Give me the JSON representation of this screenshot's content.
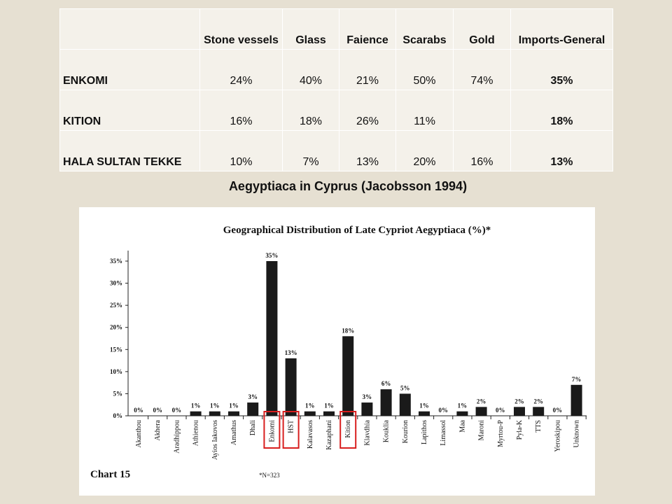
{
  "table": {
    "header": [
      null,
      "Stone vessels",
      "Glass",
      "Faience",
      "Scarabs",
      "Gold",
      "Imports-General"
    ],
    "rows": [
      [
        "ENKOMI",
        "24%",
        "40%",
        "21%",
        "50%",
        "74%",
        "35%"
      ],
      [
        "KITION",
        "16%",
        "18%",
        "26%",
        "11%",
        null,
        "18%"
      ],
      [
        "HALA SULTAN TEKKE",
        "10%",
        "7%",
        "13%",
        "20%",
        "16%",
        "13%"
      ]
    ]
  },
  "caption": "Aegyptiaca in Cyprus (Jacobsson 1994)",
  "chart_data": {
    "type": "bar",
    "title": "Geographical Distribution of Late Cypriot Aegyptiaca (%)*",
    "label": "Chart 15",
    "footnote": "*N=323",
    "categories": [
      "Akanthou",
      "Akhera",
      "Aradhippou",
      "Athienou",
      "Ayios Iakovos",
      "Amathus",
      "Dhali",
      "Enkomi",
      "HST",
      "Kalavasos",
      "Kazaphani",
      "Kition",
      "Klavdhia",
      "Kouklia",
      "Kourion",
      "Lapithos",
      "Limassol",
      "Maa",
      "Maroni",
      "Myrtou-P",
      "Pyla-K",
      "TTS",
      "Yeroskipou",
      "Unknown"
    ],
    "values": [
      0,
      0,
      0,
      1,
      1,
      1,
      3,
      35,
      13,
      1,
      1,
      18,
      3,
      6,
      5,
      1,
      0,
      1,
      2,
      0,
      2,
      2,
      0,
      7
    ],
    "value_labels": [
      "0%",
      "0%",
      "0%",
      "1%",
      "1%",
      "1%",
      "3%",
      "35%",
      "13%",
      "1%",
      "1%",
      "18%",
      "3%",
      "6%",
      "5%",
      "1%",
      "0%",
      "1%",
      "2%",
      "0%",
      "2%",
      "2%",
      "0%",
      "7%"
    ],
    "color": "#1a1a1a",
    "ylim": [
      0,
      35
    ],
    "yticks": [
      {
        "value": 0,
        "label": "0%"
      },
      {
        "value": 5,
        "label": "5%"
      },
      {
        "value": 10,
        "label": "10%"
      },
      {
        "value": 15,
        "label": "15%"
      },
      {
        "value": 20,
        "label": "20%"
      },
      {
        "value": 25,
        "label": "25%"
      },
      {
        "value": 30,
        "label": "30%"
      },
      {
        "value": 35,
        "label": "35%"
      }
    ],
    "highlight": [
      "Enkomi",
      "HST",
      "Kition"
    ],
    "highlight_color": "#d81e1e"
  }
}
